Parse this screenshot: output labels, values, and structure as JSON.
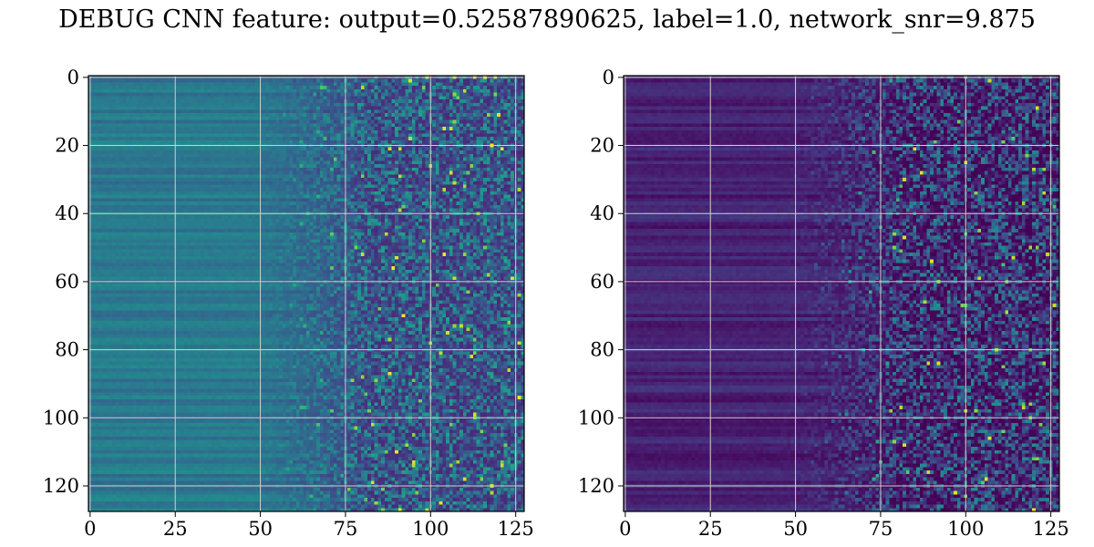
{
  "title": "DEBUG CNN feature: output=0.52587890625, label=1.0, network_snr=9.875",
  "colormap": "viridis",
  "chart_data": [
    {
      "type": "heatmap",
      "shape": [
        128,
        128
      ],
      "xlim": [
        0,
        127
      ],
      "ylim": [
        127,
        0
      ],
      "xticks": [
        0,
        25,
        50,
        75,
        100,
        125
      ],
      "yticks": [
        0,
        20,
        40,
        60,
        80,
        100,
        120
      ],
      "grid": true,
      "pattern": {
        "left_columns_0_50": "smooth horizontal bands, teal-blue (~0.35-0.45 of colormap)",
        "columns_50_75": "transition, fading gradually into noise",
        "right_columns_75_127": "noisy pixels, mostly dark blue with scattered green/yellow speckles"
      }
    },
    {
      "type": "heatmap",
      "shape": [
        128,
        128
      ],
      "xlim": [
        0,
        127
      ],
      "ylim": [
        127,
        0
      ],
      "xticks": [
        0,
        25,
        50,
        75,
        100,
        125
      ],
      "yticks": [
        0,
        20,
        40,
        60,
        80,
        100,
        120
      ],
      "grid": true,
      "pattern": {
        "left_columns_0_50": "dark purple horizontal bands (~0.0-0.15 of colormap)",
        "columns_50_75": "transition to noise",
        "right_columns_75_127": "noisy pixels, dark purple with scattered blue/green/yellow speckles"
      }
    }
  ]
}
